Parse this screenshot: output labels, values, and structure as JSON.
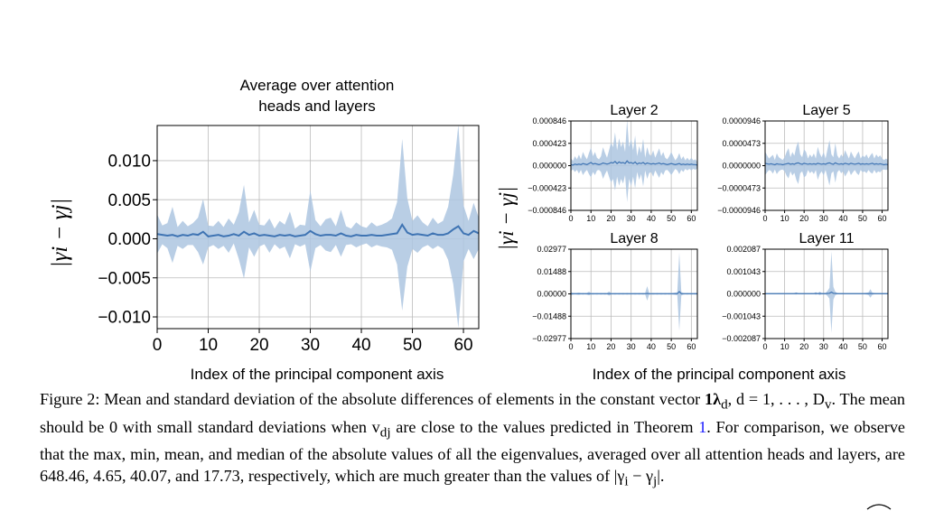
{
  "figure": {
    "main_title_line1": "Average over attention",
    "main_title_line2": "heads and layers",
    "left_ylabel": "|γi − γj|",
    "right_ylabel": "|γi − γj|",
    "main_xlabel": "Index of the principal component axis",
    "grid_xlabel": "Index of the principal component axis"
  },
  "caption": {
    "part1": "Figure 2: Mean and standard deviation of the absolute differences of elements in the constant vector ",
    "vec": "1λ",
    "vec_sub": "d",
    "part2": ", d = 1, . . . , D",
    "dv_sub": "v",
    "part3": ". The mean should be 0 with small standard deviations when v",
    "vdj_sub": "dj",
    "part4": " are close to the values predicted in Theorem ",
    "theorem_ref": "1",
    "part5": ". For comparison, we observe that the max, min, mean, and median of the absolute values of all the eigenvalues, averaged over all attention heads and layers, are 648.46, 4.65, 40.07, and 17.73, respectively, which are much greater than the values of |γ",
    "gi_sub": "i",
    "part6": " − γ",
    "gj_sub": "j",
    "part7": "|."
  },
  "colors": {
    "line": "#3f74b3",
    "band": "#adc6e0",
    "grid": "#bcbcbc",
    "axis": "#000000"
  },
  "chart_data": [
    {
      "id": "main",
      "type": "line",
      "title": "Average over attention\nheads and layers",
      "xlabel": "Index of the principal component axis",
      "ylabel": "|γi − γj|",
      "xlim": [
        0,
        63
      ],
      "ylim": [
        -0.0115,
        0.0145
      ],
      "grid": true,
      "xticks": [
        0,
        10,
        20,
        30,
        40,
        50,
        60
      ],
      "xtick_labels": [
        "0",
        "10",
        "20",
        "30",
        "40",
        "50",
        "60"
      ],
      "yticks": [
        0.01,
        0.005,
        0.0,
        -0.005,
        -0.01
      ],
      "ytick_labels": [
        "0.010",
        "0.005",
        "0.000",
        "−0.005",
        "−0.010"
      ],
      "series": [
        {
          "mean": [
            0.0006,
            0.0005,
            0.0004,
            0.0005,
            0.0003,
            0.0005,
            0.0004,
            0.0006,
            0.0005,
            0.0009,
            0.0003,
            0.0004,
            0.0005,
            0.0003,
            0.0004,
            0.0006,
            0.0004,
            0.0009,
            0.0005,
            0.0007,
            0.0004,
            0.0005,
            0.0004,
            0.0003,
            0.0005,
            0.0004,
            0.0005,
            0.0003,
            0.0004,
            0.0005,
            0.001,
            0.0006,
            0.0004,
            0.0005,
            0.0005,
            0.0004,
            0.0007,
            0.0004,
            0.0003,
            0.0005,
            0.0004,
            0.0004,
            0.0005,
            0.0004,
            0.0004,
            0.0005,
            0.0006,
            0.0007,
            0.0018,
            0.0008,
            0.0005,
            0.0006,
            0.0005,
            0.0004,
            0.0007,
            0.0005,
            0.0005,
            0.0007,
            0.0012,
            0.0016,
            0.0007,
            0.0005,
            0.001,
            0.0007
          ],
          "std": [
            0.0025,
            0.0012,
            0.0016,
            0.0036,
            0.0012,
            0.0018,
            0.0012,
            0.0014,
            0.0022,
            0.0042,
            0.0014,
            0.0012,
            0.0018,
            0.0012,
            0.0022,
            0.0012,
            0.003,
            0.006,
            0.0016,
            0.003,
            0.0014,
            0.0012,
            0.0022,
            0.001,
            0.0018,
            0.0014,
            0.003,
            0.001,
            0.0014,
            0.0012,
            0.0052,
            0.0018,
            0.0012,
            0.002,
            0.0022,
            0.0012,
            0.003,
            0.0012,
            0.001,
            0.0016,
            0.0012,
            0.001,
            0.0016,
            0.0012,
            0.0014,
            0.0016,
            0.002,
            0.004,
            0.011,
            0.0044,
            0.0018,
            0.0024,
            0.0016,
            0.0012,
            0.002,
            0.0014,
            0.0018,
            0.0034,
            0.007,
            0.013,
            0.0036,
            0.0018,
            0.0036,
            0.002
          ]
        }
      ]
    },
    {
      "id": "layer2",
      "type": "line",
      "title": "Layer 2",
      "xlim": [
        0,
        63
      ],
      "ylim": [
        -0.000846,
        0.000846
      ],
      "grid": true,
      "xticks": [
        0,
        10,
        20,
        30,
        40,
        50,
        60
      ],
      "xtick_labels": [
        "0",
        "10",
        "20",
        "30",
        "40",
        "50",
        "60"
      ],
      "yticks": [
        0.000846,
        0.000423,
        0.0,
        -0.000423,
        -0.000846
      ],
      "ytick_labels": [
        "0.000846",
        "0.000423",
        "0.000000",
        "−0.000423",
        "−0.000846"
      ],
      "series": [
        {
          "mean": [
            2e-05,
            1e-05,
            3e-05,
            2e-05,
            3e-05,
            2e-05,
            4e-05,
            3e-05,
            2e-05,
            4e-05,
            6e-05,
            3e-05,
            4e-05,
            3e-05,
            2e-05,
            3e-05,
            5e-05,
            4e-05,
            3e-05,
            4e-05,
            6e-05,
            5e-05,
            8e-05,
            4e-05,
            7e-05,
            5e-05,
            6e-05,
            4e-05,
            9e-05,
            5e-05,
            6e-05,
            4e-05,
            7e-05,
            3e-05,
            5e-05,
            4e-05,
            6e-05,
            3e-05,
            5e-05,
            4e-05,
            3e-05,
            4e-05,
            3e-05,
            4e-05,
            5e-05,
            3e-05,
            4e-05,
            3e-05,
            2e-05,
            3e-05,
            4e-05,
            3e-05,
            2e-05,
            3e-05,
            4e-05,
            2e-05,
            3e-05,
            2e-05,
            3e-05,
            2e-05,
            3e-05,
            2e-05,
            2e-05,
            1e-05
          ],
          "std": [
            0.00012,
            8e-05,
            0.00015,
            0.0001,
            0.00018,
            0.0001,
            0.00022,
            0.00015,
            0.0001,
            0.0002,
            0.00028,
            0.00015,
            0.00022,
            0.00012,
            0.0001,
            0.00015,
            0.0003,
            0.0002,
            0.00012,
            0.00025,
            0.00038,
            0.0003,
            0.00055,
            0.00025,
            0.00045,
            0.0003,
            0.0004,
            0.00022,
            0.00078,
            0.0003,
            0.00045,
            0.00025,
            0.0005,
            0.00015,
            0.00032,
            0.0002,
            0.00045,
            0.00012,
            0.0003,
            0.00018,
            0.00015,
            0.00025,
            0.00012,
            0.0002,
            0.00028,
            0.00015,
            0.00022,
            0.00012,
            0.0001,
            0.00015,
            0.00022,
            0.00015,
            8e-05,
            0.00012,
            0.0002,
            0.0001,
            0.00015,
            8e-05,
            0.00012,
            8e-05,
            0.00012,
            8e-05,
            0.0001,
            6e-05
          ]
        }
      ]
    },
    {
      "id": "layer5",
      "type": "line",
      "title": "Layer 5",
      "xlim": [
        0,
        63
      ],
      "ylim": [
        -9.46e-05,
        9.46e-05
      ],
      "grid": true,
      "xticks": [
        0,
        10,
        20,
        30,
        40,
        50,
        60
      ],
      "xtick_labels": [
        "0",
        "10",
        "20",
        "30",
        "40",
        "50",
        "60"
      ],
      "yticks": [
        9.46e-05,
        4.73e-05,
        0.0,
        -4.73e-05,
        -9.46e-05
      ],
      "ytick_labels": [
        "0.0000946",
        "0.0000473",
        "0.0000000",
        "−0.0000473",
        "−0.0000946"
      ],
      "series": [
        {
          "mean": [
            5e-06,
            4e-06,
            3e-06,
            4e-06,
            3e-06,
            2e-06,
            4e-06,
            3e-06,
            3e-06,
            2e-06,
            3e-06,
            4e-06,
            5e-06,
            3e-06,
            4e-06,
            3e-06,
            5e-06,
            6e-06,
            4e-06,
            3e-06,
            5e-06,
            4e-06,
            3e-06,
            4e-06,
            3e-06,
            4e-06,
            3e-06,
            5e-06,
            4e-06,
            3e-06,
            4e-06,
            3e-06,
            5e-06,
            6e-06,
            4e-06,
            3e-06,
            6e-06,
            4e-06,
            3e-06,
            4e-06,
            3e-06,
            5e-06,
            4e-06,
            3e-06,
            5e-06,
            4e-06,
            3e-06,
            4e-06,
            5e-06,
            3e-06,
            4e-06,
            3e-06,
            4e-06,
            3e-06,
            4e-06,
            5e-06,
            3e-06,
            4e-06,
            3e-06,
            4e-06,
            3e-06,
            2e-06,
            3e-06,
            2e-06
          ],
          "std": [
            2.5e-05,
            1.8e-05,
            1.2e-05,
            1.5e-05,
            2e-05,
            1e-05,
            2.2e-05,
            1.5e-05,
            1.2e-05,
            1e-05,
            1.5e-05,
            2.5e-05,
            3.2e-05,
            1.5e-05,
            2.5e-05,
            1.8e-05,
            3.5e-05,
            4.5e-05,
            2e-05,
            1.5e-05,
            3e-05,
            2.5e-05,
            1.2e-05,
            2e-05,
            1.5e-05,
            2.2e-05,
            1.2e-05,
            3.5e-05,
            2.2e-05,
            1.5e-05,
            2.5e-05,
            1.2e-05,
            3e-05,
            4.8e-05,
            2e-05,
            1.5e-05,
            4.2e-05,
            1.8e-05,
            1.2e-05,
            2e-05,
            1.5e-05,
            2.8e-05,
            2e-05,
            1.2e-05,
            2.5e-05,
            1.8e-05,
            1.2e-05,
            2e-05,
            2.5e-05,
            1.2e-05,
            1.8e-05,
            1.5e-05,
            2e-05,
            1.2e-05,
            1.8e-05,
            2.2e-05,
            1.2e-05,
            2e-05,
            1.5e-05,
            1.8e-05,
            1.2e-05,
            1e-05,
            1.2e-05,
            1e-05
          ]
        }
      ]
    },
    {
      "id": "layer8",
      "type": "line",
      "title": "Layer 8",
      "xlim": [
        0,
        63
      ],
      "ylim": [
        -0.02977,
        0.02977
      ],
      "grid": true,
      "xticks": [
        0,
        10,
        20,
        30,
        40,
        50,
        60
      ],
      "xtick_labels": [
        "0",
        "10",
        "20",
        "30",
        "40",
        "50",
        "60"
      ],
      "yticks": [
        0.02977,
        0.01488,
        0.0,
        -0.01488,
        -0.02977
      ],
      "ytick_labels": [
        "0.02977",
        "0.01488",
        "0.00000",
        "−0.01488",
        "−0.02977"
      ],
      "series": [
        {
          "mean": [
            0.0001,
            0.0001,
            0.0001,
            0.0001,
            0.0001,
            0.0001,
            0.0001,
            0.0001,
            0.0001,
            0.0002,
            0.0001,
            0.0001,
            0.0001,
            0.0001,
            0.0001,
            0.0001,
            0.0001,
            0.0001,
            0.0001,
            0.0002,
            0.0001,
            0.0001,
            0.0001,
            0.0001,
            0.0001,
            0.0001,
            0.0001,
            0.0001,
            0.0001,
            0.0001,
            0.0001,
            0.0001,
            0.0001,
            0.0001,
            0.0001,
            0.0001,
            0.0001,
            0.0001,
            0.0003,
            0.0001,
            0.0001,
            0.0001,
            0.0001,
            0.0001,
            0.0001,
            0.0001,
            0.0001,
            0.0001,
            0.0001,
            0.0001,
            0.0001,
            0.0001,
            0.0001,
            0.0001,
            0.0015,
            0.0001,
            0.0001,
            0.0001,
            0.0001,
            0.0001,
            0.0001,
            0.0001,
            0.0001,
            0.0001
          ],
          "std": [
            0.001,
            0.0006,
            0.0005,
            0.0006,
            0.0008,
            0.0005,
            0.0006,
            0.0005,
            0.0006,
            0.0012,
            0.0005,
            0.0006,
            0.0005,
            0.0006,
            0.0005,
            0.0006,
            0.0005,
            0.0006,
            0.0005,
            0.0014,
            0.0006,
            0.0005,
            0.0006,
            0.0005,
            0.0006,
            0.0005,
            0.0006,
            0.0005,
            0.0006,
            0.0005,
            0.0006,
            0.0005,
            0.0006,
            0.0005,
            0.0006,
            0.0005,
            0.0006,
            0.0005,
            0.0048,
            0.0006,
            0.0005,
            0.0006,
            0.0005,
            0.0006,
            0.0005,
            0.0006,
            0.0005,
            0.0006,
            0.0005,
            0.0006,
            0.0005,
            0.0006,
            0.0008,
            0.001,
            0.026,
            0.0012,
            0.0006,
            0.0005,
            0.0006,
            0.0005,
            0.0006,
            0.0005,
            0.0006,
            0.0005
          ]
        }
      ]
    },
    {
      "id": "layer11",
      "type": "line",
      "title": "Layer 11",
      "xlim": [
        0,
        63
      ],
      "ylim": [
        -0.002087,
        0.002087
      ],
      "grid": true,
      "xticks": [
        0,
        10,
        20,
        30,
        40,
        50,
        60
      ],
      "xtick_labels": [
        "0",
        "10",
        "20",
        "30",
        "40",
        "50",
        "60"
      ],
      "yticks": [
        0.002087,
        0.001043,
        0.0,
        -0.001043,
        -0.002087
      ],
      "ytick_labels": [
        "0.002087",
        "0.001043",
        "0.000000",
        "−0.001043",
        "−0.002087"
      ],
      "series": [
        {
          "mean": [
            1e-05,
            1e-05,
            1e-05,
            1e-05,
            1e-05,
            1e-05,
            1e-05,
            1e-05,
            1e-05,
            1e-05,
            1e-05,
            1e-05,
            1e-05,
            1e-05,
            1e-05,
            1e-05,
            2e-05,
            1e-05,
            1e-05,
            1e-05,
            1e-05,
            1e-05,
            1e-05,
            1e-05,
            1e-05,
            1e-05,
            2e-05,
            1e-05,
            2e-05,
            1e-05,
            1e-05,
            1e-05,
            2e-05,
            3e-05,
            8e-05,
            3e-05,
            2e-05,
            1e-05,
            1e-05,
            1e-05,
            1e-05,
            1e-05,
            1e-05,
            1e-05,
            1e-05,
            1e-05,
            1e-05,
            1e-05,
            1e-05,
            1e-05,
            1e-05,
            1e-05,
            1e-05,
            1e-05,
            2e-05,
            1e-05,
            1e-05,
            1e-05,
            1e-05,
            1e-05,
            1e-05,
            1e-05,
            1e-05,
            1e-05
          ],
          "std": [
            3e-05,
            2e-05,
            2e-05,
            2e-05,
            2e-05,
            2e-05,
            2e-05,
            3e-05,
            2e-05,
            2e-05,
            2e-05,
            2e-05,
            2e-05,
            2e-05,
            2e-05,
            3e-05,
            5e-05,
            2e-05,
            2e-05,
            2e-05,
            3e-05,
            2e-05,
            2e-05,
            2e-05,
            3e-05,
            2e-05,
            6e-05,
            2e-05,
            8e-05,
            3e-05,
            4e-05,
            3e-05,
            0.00012,
            0.00025,
            0.0019,
            0.0003,
            8e-05,
            3e-05,
            2e-05,
            2e-05,
            3e-05,
            2e-05,
            2e-05,
            2e-05,
            2e-05,
            2e-05,
            2e-05,
            2e-05,
            2e-05,
            2e-05,
            2e-05,
            3e-05,
            4e-05,
            6e-05,
            0.0002,
            5e-05,
            3e-05,
            2e-05,
            2e-05,
            2e-05,
            2e-05,
            2e-05,
            2e-05,
            2e-05
          ]
        }
      ]
    }
  ]
}
